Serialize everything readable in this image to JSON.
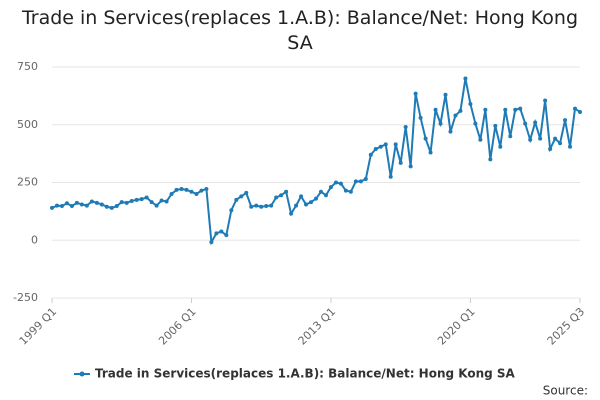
{
  "chart_data": {
    "type": "line",
    "title": "Trade in Services(replaces 1.A.B): Balance/Net: Hong Kong SA",
    "source": "Source:",
    "categories": [
      "1999 Q1",
      null,
      null,
      null,
      null,
      null,
      null,
      null,
      null,
      null,
      null,
      null,
      null,
      null,
      null,
      null,
      null,
      null,
      null,
      null,
      null,
      null,
      null,
      null,
      null,
      null,
      null,
      null,
      "2006 Q1",
      null,
      null,
      null,
      null,
      null,
      null,
      null,
      null,
      null,
      null,
      null,
      null,
      null,
      null,
      null,
      null,
      null,
      null,
      null,
      null,
      null,
      null,
      null,
      null,
      null,
      null,
      null,
      "2013 Q1",
      null,
      null,
      null,
      null,
      null,
      null,
      null,
      null,
      null,
      null,
      null,
      null,
      null,
      null,
      null,
      null,
      null,
      null,
      null,
      null,
      null,
      null,
      null,
      null,
      null,
      null,
      null,
      "2020 Q1",
      null,
      null,
      null,
      null,
      null,
      null,
      null,
      null,
      null,
      null,
      null,
      null,
      null,
      null,
      null,
      null,
      null,
      null,
      null,
      null,
      null,
      "2025 Q3"
    ],
    "series": [
      {
        "name": "Trade in Services(replaces 1.A.B): Balance/Net: Hong Kong SA",
        "color": "#1f7bb6",
        "values": [
          140,
          150,
          148,
          160,
          148,
          162,
          155,
          150,
          168,
          162,
          155,
          145,
          140,
          148,
          165,
          162,
          170,
          175,
          178,
          185,
          165,
          150,
          172,
          168,
          200,
          218,
          222,
          218,
          210,
          200,
          215,
          222,
          -8,
          30,
          38,
          22,
          130,
          175,
          190,
          205,
          145,
          150,
          145,
          148,
          150,
          185,
          195,
          210,
          115,
          150,
          190,
          155,
          165,
          180,
          210,
          195,
          230,
          250,
          245,
          215,
          210,
          255,
          255,
          265,
          370,
          395,
          405,
          415,
          275,
          415,
          335,
          490,
          320,
          635,
          530,
          440,
          380,
          565,
          505,
          630,
          470,
          540,
          560,
          700,
          590,
          505,
          435,
          565,
          350,
          495,
          405,
          565,
          450,
          565,
          570,
          505,
          435,
          510,
          440,
          605,
          395,
          440,
          420,
          520,
          405,
          570,
          555
        ]
      }
    ],
    "ylim": [
      -250,
      750
    ],
    "yticks": [
      -250,
      0,
      250,
      500,
      750
    ],
    "grid": true
  }
}
